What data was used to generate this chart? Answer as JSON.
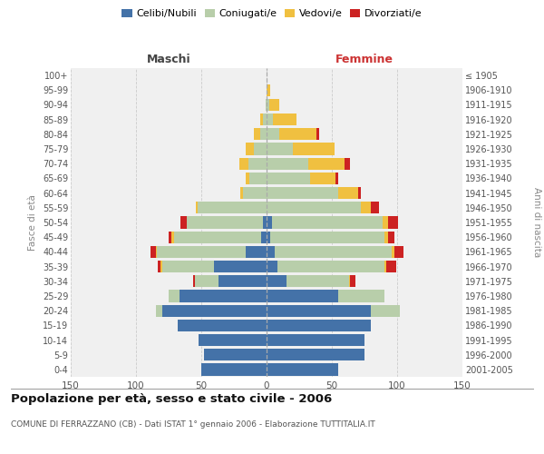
{
  "age_groups": [
    "0-4",
    "5-9",
    "10-14",
    "15-19",
    "20-24",
    "25-29",
    "30-34",
    "35-39",
    "40-44",
    "45-49",
    "50-54",
    "55-59",
    "60-64",
    "65-69",
    "70-74",
    "75-79",
    "80-84",
    "85-89",
    "90-94",
    "95-99",
    "100+"
  ],
  "birth_years": [
    "2001-2005",
    "1996-2000",
    "1991-1995",
    "1986-1990",
    "1981-1985",
    "1976-1980",
    "1971-1975",
    "1966-1970",
    "1961-1965",
    "1956-1960",
    "1951-1955",
    "1946-1950",
    "1941-1945",
    "1936-1940",
    "1931-1935",
    "1926-1930",
    "1921-1925",
    "1916-1920",
    "1911-1915",
    "1906-1910",
    "≤ 1905"
  ],
  "male": {
    "celibi": [
      50,
      48,
      52,
      68,
      80,
      67,
      37,
      40,
      16,
      4,
      3,
      0,
      0,
      0,
      0,
      0,
      0,
      0,
      0,
      0,
      0
    ],
    "coniugati": [
      0,
      0,
      0,
      0,
      5,
      8,
      18,
      40,
      68,
      67,
      58,
      53,
      18,
      13,
      14,
      10,
      5,
      3,
      1,
      0,
      0
    ],
    "vedovi": [
      0,
      0,
      0,
      0,
      0,
      0,
      0,
      1,
      1,
      2,
      0,
      1,
      2,
      3,
      7,
      6,
      5,
      2,
      0,
      0,
      0
    ],
    "divorziati": [
      0,
      0,
      0,
      0,
      0,
      0,
      1,
      2,
      4,
      2,
      5,
      0,
      0,
      0,
      0,
      0,
      0,
      0,
      0,
      0,
      0
    ]
  },
  "female": {
    "nubili": [
      55,
      75,
      75,
      80,
      80,
      55,
      15,
      8,
      6,
      3,
      4,
      0,
      0,
      0,
      0,
      0,
      0,
      0,
      0,
      0,
      0
    ],
    "coniugate": [
      0,
      0,
      0,
      0,
      22,
      35,
      48,
      82,
      90,
      87,
      85,
      72,
      55,
      33,
      32,
      20,
      10,
      5,
      2,
      0,
      0
    ],
    "vedove": [
      0,
      0,
      0,
      0,
      0,
      0,
      1,
      2,
      2,
      3,
      4,
      8,
      15,
      20,
      28,
      32,
      28,
      18,
      8,
      3,
      0
    ],
    "divorziate": [
      0,
      0,
      0,
      0,
      0,
      0,
      4,
      7,
      7,
      5,
      8,
      6,
      2,
      2,
      4,
      0,
      2,
      0,
      0,
      0,
      0
    ]
  },
  "colors": {
    "celibi_nubili": "#4472a8",
    "coniugati": "#b8ceaa",
    "vedovi": "#f0c040",
    "divorziati": "#cc2222"
  },
  "xlim": 150,
  "title": "Popolazione per età, sesso e stato civile - 2006",
  "subtitle": "COMUNE DI FERRAZZANO (CB) - Dati ISTAT 1° gennaio 2006 - Elaborazione TUTTITALIA.IT",
  "ylabel_left": "Fasce di età",
  "ylabel_right": "Anni di nascita",
  "xlabel_male": "Maschi",
  "xlabel_female": "Femmine",
  "bg_color": "#ffffff",
  "plot_bg": "#f0f0f0",
  "grid_color": "#cccccc"
}
